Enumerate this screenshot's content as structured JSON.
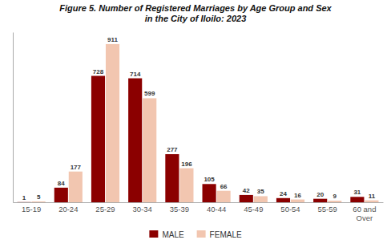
{
  "chart_data": {
    "type": "bar",
    "title": "Figure 5. Number of Registered Marriages by Age Group and Sex\nin the City of Iloilo: 2023",
    "categories": [
      "15-19",
      "20-24",
      "25-29",
      "30-34",
      "35-39",
      "40-44",
      "45-49",
      "50-54",
      "55-59",
      "60 and\nOver"
    ],
    "series": [
      {
        "name": "MALE",
        "color": "#8B0000",
        "values": [
          1,
          84,
          728,
          714,
          277,
          105,
          42,
          24,
          20,
          31
        ]
      },
      {
        "name": "FEMALE",
        "color": "#F2C6B0",
        "values": [
          5,
          177,
          911,
          599,
          196,
          66,
          35,
          16,
          9,
          11
        ]
      }
    ],
    "ylim": [
      0,
      980
    ],
    "data_labels": true,
    "legend": "bottom",
    "grid": false,
    "tick_labels": "x"
  }
}
